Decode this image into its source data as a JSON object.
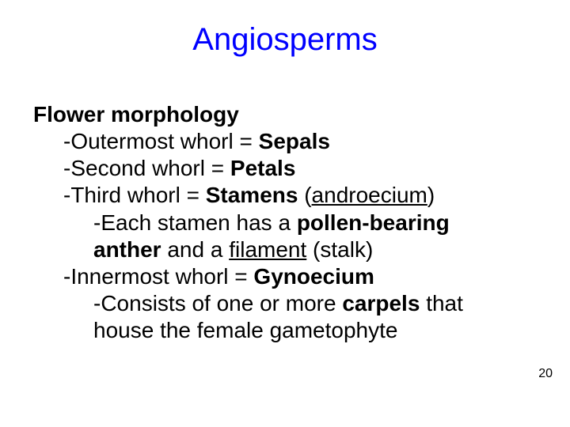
{
  "title": {
    "text": "Angiosperms",
    "color": "#0000ff",
    "fontsize": 40
  },
  "body": {
    "color": "#000000",
    "fontsize": 28,
    "heading": "Flower morphology",
    "l1a": "-Outermost whorl = ",
    "l1b": "Sepals",
    "l2a": "-Second whorl = ",
    "l2b": "Petals",
    "l3a": "-Third whorl = ",
    "l3b": "Stamens",
    "l3c": " (",
    "l3d": "androecium",
    "l3e": ")",
    "l4a": "-Each stamen has a ",
    "l4b": "pollen-bearing",
    "l5a": "anther",
    "l5b": " and a ",
    "l5c": "filament",
    "l5d": " (stalk)",
    "l6a": "-Innermost whorl = ",
    "l6b": "Gynoecium",
    "l7a": "-Consists of one or more ",
    "l7b": "carpels",
    "l7c": " that",
    "l8": "house the female gametophyte"
  },
  "pagenum": "20",
  "background_color": "#ffffff"
}
